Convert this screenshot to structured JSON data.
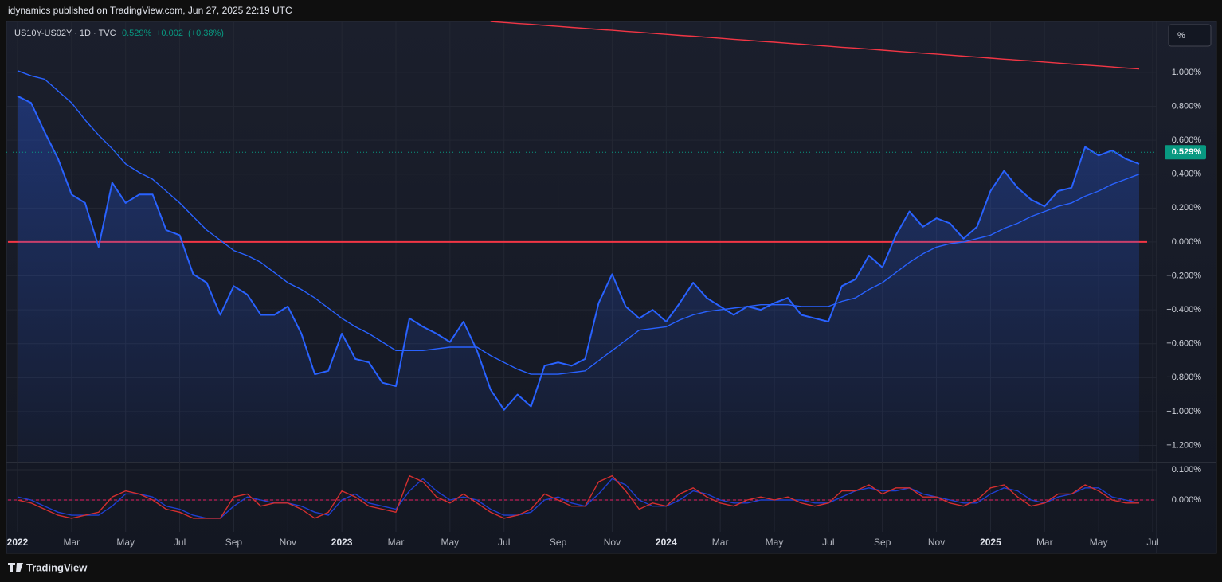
{
  "header": {
    "publisher": "idynamics published on TradingView.com, Jun 27, 2025 22:19 UTC"
  },
  "footer": {
    "brand": "TradingView"
  },
  "chart_data": [
    {
      "type": "line",
      "legend": "US10Y-US02Y · 1D · TVC",
      "unit": "%",
      "change": "+0.002",
      "change_pct": "(+0.38%)",
      "last": {
        "value": 0.529,
        "label": "0.529%"
      },
      "last_color": "#089981",
      "grid": true,
      "categories": [
        "2022",
        null,
        null,
        null,
        "Mar",
        null,
        null,
        null,
        "May",
        null,
        null,
        null,
        "Jul",
        null,
        null,
        null,
        "Sep",
        null,
        null,
        null,
        "Nov",
        null,
        null,
        null,
        "2023",
        null,
        null,
        null,
        "Mar",
        null,
        null,
        null,
        "May",
        null,
        null,
        null,
        "Jul",
        null,
        null,
        null,
        "Sep",
        null,
        null,
        null,
        "Nov",
        null,
        null,
        null,
        "2024",
        null,
        null,
        null,
        "Mar",
        null,
        null,
        null,
        "May",
        null,
        null,
        null,
        "Jul",
        null,
        null,
        null,
        "Sep",
        null,
        null,
        null,
        "Nov",
        null,
        null,
        null,
        "2025",
        null,
        null,
        null,
        "Mar",
        null,
        null,
        null,
        "May",
        null,
        null,
        null,
        "Jul"
      ],
      "ylim": [
        -1.296,
        1.3
      ],
      "yticks": [
        {
          "value": -1.2,
          "label": "−1.200%"
        },
        {
          "value": -1.0,
          "label": "−1.000%"
        },
        {
          "value": -0.8,
          "label": "−0.800%"
        },
        {
          "value": -0.6,
          "label": "−0.600%"
        },
        {
          "value": -0.4,
          "label": "−0.400%"
        },
        {
          "value": -0.2,
          "label": "−0.200%"
        },
        {
          "value": 0,
          "label": "0.000%"
        },
        {
          "value": 0.2,
          "label": "0.200%"
        },
        {
          "value": 0.4,
          "label": "0.400%"
        },
        {
          "value": 0.6,
          "label": "0.600%"
        },
        {
          "value": 0.8,
          "label": "0.800%"
        },
        {
          "value": 1.0,
          "label": "1.000%"
        }
      ],
      "zero_line": {
        "value": 0,
        "color": "#f23645"
      },
      "series": [
        {
          "color": "#2962ff",
          "area": true,
          "values": [
            0.86,
            0.82,
            0.65,
            0.49,
            0.28,
            0.23,
            -0.03,
            0.35,
            0.23,
            0.28,
            0.28,
            0.07,
            0.04,
            -0.19,
            -0.24,
            -0.43,
            -0.26,
            -0.31,
            -0.43,
            -0.43,
            -0.38,
            -0.54,
            -0.78,
            -0.76,
            -0.54,
            -0.69,
            -0.71,
            -0.83,
            -0.85,
            -0.45,
            -0.5,
            -0.54,
            -0.59,
            -0.47,
            -0.64,
            -0.87,
            -0.99,
            -0.9,
            -0.97,
            -0.73,
            -0.71,
            -0.73,
            -0.69,
            -0.36,
            -0.19,
            -0.38,
            -0.45,
            -0.4,
            -0.47,
            -0.36,
            -0.24,
            -0.33,
            -0.38,
            -0.43,
            -0.38,
            -0.4,
            -0.36,
            -0.33,
            -0.43,
            -0.45,
            -0.47,
            -0.26,
            -0.22,
            -0.08,
            -0.15,
            0.04,
            0.18,
            0.09,
            0.14,
            0.11,
            0.02,
            0.09,
            0.3,
            0.42,
            0.32,
            0.25,
            0.21,
            0.3,
            0.32,
            0.56,
            0.51,
            0.54,
            0.49,
            0.46,
            null
          ]
        },
        {
          "color": "#2962ff",
          "values": [
            1.01,
            0.98,
            0.96,
            0.89,
            0.82,
            0.72,
            0.63,
            0.55,
            0.46,
            0.41,
            0.37,
            0.3,
            0.23,
            0.15,
            0.07,
            0.01,
            -0.05,
            -0.08,
            -0.12,
            -0.18,
            -0.24,
            -0.28,
            -0.33,
            -0.39,
            -0.45,
            -0.5,
            -0.54,
            -0.59,
            -0.64,
            -0.64,
            -0.64,
            -0.63,
            -0.62,
            -0.62,
            -0.62,
            -0.67,
            -0.71,
            -0.75,
            -0.78,
            -0.78,
            -0.78,
            -0.77,
            -0.76,
            -0.7,
            -0.64,
            -0.58,
            -0.52,
            -0.51,
            -0.5,
            -0.46,
            -0.43,
            -0.41,
            -0.4,
            -0.39,
            -0.38,
            -0.37,
            -0.37,
            -0.37,
            -0.38,
            -0.38,
            -0.38,
            -0.35,
            -0.33,
            -0.28,
            -0.24,
            -0.18,
            -0.12,
            -0.07,
            -0.03,
            -0.01,
            0.0,
            0.02,
            0.04,
            0.08,
            0.11,
            0.15,
            0.18,
            0.21,
            0.23,
            0.27,
            0.3,
            0.34,
            0.37,
            0.4,
            null
          ]
        },
        {
          "color": "#f23645",
          "values": [
            null,
            null,
            null,
            null,
            null,
            null,
            null,
            null,
            null,
            null,
            null,
            null,
            null,
            null,
            null,
            null,
            null,
            null,
            null,
            null,
            null,
            null,
            null,
            null,
            null,
            null,
            null,
            null,
            null,
            null,
            null,
            null,
            null,
            null,
            null,
            1.3,
            1.294,
            1.288,
            1.283,
            1.277,
            1.271,
            1.265,
            1.259,
            1.253,
            1.248,
            1.242,
            1.236,
            1.23,
            1.224,
            1.218,
            1.213,
            1.207,
            1.201,
            1.195,
            1.189,
            1.183,
            1.178,
            1.172,
            1.166,
            1.16,
            1.154,
            1.148,
            1.143,
            1.137,
            1.131,
            1.125,
            1.119,
            1.113,
            1.108,
            1.102,
            1.096,
            1.09,
            1.084,
            1.078,
            1.073,
            1.067,
            1.061,
            1.055,
            1.049,
            1.043,
            1.038,
            1.032,
            1.026,
            1.02,
            null
          ]
        }
      ]
    },
    {
      "type": "line",
      "grid": true,
      "ylim": [
        -0.105,
        0.121
      ],
      "yticks": [
        {
          "value": 0,
          "label": "0.000%"
        },
        {
          "value": 0.1,
          "label": "0.100%"
        }
      ],
      "zero_line": {
        "value": 0,
        "color": "#e91e63"
      },
      "series": [
        {
          "color": "#1e3fd0",
          "values": [
            0.01,
            0,
            -0.02,
            -0.04,
            -0.05,
            -0.05,
            -0.05,
            -0.02,
            0.02,
            0.02,
            0.01,
            -0.02,
            -0.03,
            -0.05,
            -0.06,
            -0.06,
            -0.02,
            0.01,
            0,
            -0.01,
            -0.01,
            -0.02,
            -0.04,
            -0.05,
            0,
            0.02,
            -0.01,
            -0.02,
            -0.03,
            0.03,
            0.07,
            0.03,
            0,
            0.01,
            0,
            -0.03,
            -0.05,
            -0.05,
            -0.04,
            0,
            0.01,
            -0.01,
            -0.02,
            0.02,
            0.07,
            0.05,
            0,
            -0.02,
            -0.02,
            0,
            0.03,
            0.02,
            0,
            -0.01,
            -0.01,
            0,
            0,
            0,
            0,
            -0.01,
            -0.01,
            0.01,
            0.03,
            0.04,
            0.03,
            0.03,
            0.04,
            0.02,
            0.01,
            0,
            -0.01,
            -0.01,
            0.02,
            0.04,
            0.03,
            0,
            -0.01,
            0.01,
            0.02,
            0.04,
            0.04,
            0.01,
            0,
            -0.01,
            null
          ]
        },
        {
          "color": "#d32f2f",
          "values": [
            0,
            -0.01,
            -0.03,
            -0.05,
            -0.06,
            -0.05,
            -0.04,
            0.01,
            0.03,
            0.02,
            0,
            -0.03,
            -0.04,
            -0.06,
            -0.06,
            -0.06,
            0.01,
            0.02,
            -0.02,
            -0.01,
            -0.01,
            -0.03,
            -0.06,
            -0.04,
            0.03,
            0.01,
            -0.02,
            -0.03,
            -0.04,
            0.08,
            0.06,
            0.01,
            -0.01,
            0.02,
            -0.01,
            -0.04,
            -0.06,
            -0.05,
            -0.03,
            0.02,
            0,
            -0.02,
            -0.02,
            0.06,
            0.08,
            0.03,
            -0.03,
            -0.01,
            -0.02,
            0.02,
            0.04,
            0.01,
            -0.01,
            -0.02,
            0,
            0.01,
            0,
            0.01,
            -0.01,
            -0.02,
            -0.01,
            0.03,
            0.03,
            0.05,
            0.02,
            0.04,
            0.04,
            0.01,
            0.01,
            -0.01,
            -0.02,
            0,
            0.04,
            0.05,
            0.01,
            -0.02,
            -0.01,
            0.02,
            0.02,
            0.05,
            0.03,
            0,
            -0.01,
            -0.01,
            null
          ]
        }
      ]
    }
  ]
}
